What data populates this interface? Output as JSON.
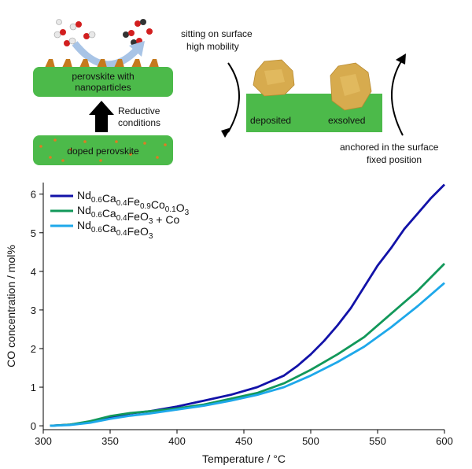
{
  "schematic": {
    "left": {
      "top_block_text": [
        "perovskite with",
        "nanoparticles"
      ],
      "bottom_block_text": "doped perovskite",
      "arrow_text": [
        "Reductive",
        "conditions"
      ]
    },
    "right": {
      "deposited_label": "deposited",
      "exsolved_label": "exsolved",
      "deposited_note": [
        "sitting on surface",
        "high mobility"
      ],
      "exsolved_note": [
        "anchored in the surface",
        "fixed position"
      ]
    },
    "colors": {
      "block_green": "#4cba4a",
      "particle_orange": "#c57a1e",
      "crystal_gold": "#d7ab4e",
      "flow_arrow_blue": "#a8c4e6"
    }
  },
  "chart_data": {
    "type": "line",
    "xlabel": "Temperature / °C",
    "ylabel": "CO concentration / mol%",
    "xlim": [
      300,
      600
    ],
    "ylim": [
      -0.1,
      6.3
    ],
    "xticks": [
      300,
      350,
      400,
      450,
      500,
      550,
      600
    ],
    "yticks": [
      0,
      1,
      2,
      3,
      4,
      5,
      6
    ],
    "grid": false,
    "legend_position": "top-left",
    "series": [
      {
        "name": "Nd0.6Ca0.4Fe0.9Co0.1O3",
        "legend": [
          [
            "Nd",
            ""
          ],
          [
            "0.6",
            "sub"
          ],
          [
            "Ca",
            ""
          ],
          [
            "0.4",
            "sub"
          ],
          [
            "Fe",
            ""
          ],
          [
            "0.9",
            "sub"
          ],
          [
            "Co",
            ""
          ],
          [
            "0.1",
            "sub"
          ],
          [
            "O",
            ""
          ],
          [
            "3",
            "sub"
          ]
        ],
        "color": "#1212a8",
        "x": [
          305,
          320,
          335,
          350,
          365,
          380,
          400,
          420,
          440,
          460,
          480,
          490,
          500,
          510,
          520,
          530,
          540,
          550,
          560,
          570,
          580,
          590,
          600
        ],
        "y": [
          0.0,
          0.03,
          0.1,
          0.22,
          0.32,
          0.38,
          0.5,
          0.65,
          0.8,
          1.0,
          1.3,
          1.55,
          1.85,
          2.2,
          2.6,
          3.05,
          3.6,
          4.15,
          4.6,
          5.1,
          5.5,
          5.9,
          6.25
        ]
      },
      {
        "name": "Nd0.6Ca0.4FeO3 + Co",
        "legend": [
          [
            "Nd",
            ""
          ],
          [
            "0.6",
            "sub"
          ],
          [
            "Ca",
            ""
          ],
          [
            "0.4",
            "sub"
          ],
          [
            "FeO",
            ""
          ],
          [
            "3",
            "sub"
          ],
          [
            " + Co",
            ""
          ]
        ],
        "color": "#12985a",
        "x": [
          305,
          320,
          335,
          350,
          365,
          380,
          400,
          420,
          440,
          460,
          480,
          500,
          520,
          540,
          560,
          580,
          600
        ],
        "y": [
          0.0,
          0.03,
          0.12,
          0.25,
          0.33,
          0.38,
          0.45,
          0.55,
          0.7,
          0.85,
          1.1,
          1.45,
          1.85,
          2.3,
          2.9,
          3.5,
          4.2
        ]
      },
      {
        "name": "Nd0.6Ca0.4FeO3",
        "legend": [
          [
            "Nd",
            ""
          ],
          [
            "0.6",
            "sub"
          ],
          [
            "Ca",
            ""
          ],
          [
            "0.4",
            "sub"
          ],
          [
            "FeO",
            ""
          ],
          [
            "3",
            "sub"
          ]
        ],
        "color": "#1ea8ea",
        "x": [
          305,
          320,
          335,
          350,
          365,
          380,
          400,
          420,
          440,
          460,
          480,
          500,
          520,
          540,
          560,
          580,
          600
        ],
        "y": [
          0.0,
          0.02,
          0.08,
          0.18,
          0.26,
          0.32,
          0.42,
          0.52,
          0.65,
          0.8,
          1.0,
          1.3,
          1.65,
          2.05,
          2.55,
          3.1,
          3.7
        ]
      }
    ]
  }
}
